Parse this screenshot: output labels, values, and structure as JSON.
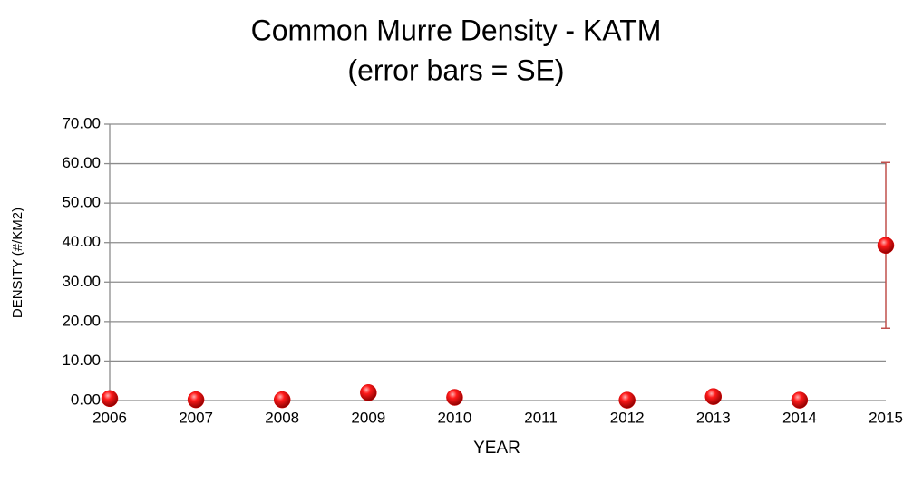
{
  "chart_data": {
    "type": "scatter",
    "title": "Common Murre Density - KATM",
    "subtitle": "(error bars = SE)",
    "x_label": "YEAR",
    "y_label": "DENSITY (#/KM2)",
    "x": [
      2006,
      2007,
      2008,
      2009,
      2010,
      2011,
      2012,
      2013,
      2014,
      2015
    ],
    "series": [
      {
        "name": "Common Murre",
        "color": "#e00000",
        "values": [
          0.5,
          0.2,
          0.2,
          2.0,
          0.8,
          null,
          0.1,
          1.0,
          0.1,
          39.3
        ],
        "errors": [
          null,
          null,
          null,
          null,
          null,
          null,
          null,
          null,
          null,
          21.0
        ],
        "error_color": "#c0504d"
      }
    ],
    "xlim": [
      2006,
      2015
    ],
    "xticks": [
      2006,
      2007,
      2008,
      2009,
      2010,
      2011,
      2012,
      2013,
      2014,
      2015
    ],
    "ylim": [
      0,
      70
    ],
    "yticks": [
      {
        "value": 0,
        "label": "0.00"
      },
      {
        "value": 10,
        "label": "10.00"
      },
      {
        "value": 20,
        "label": "20.00"
      },
      {
        "value": 30,
        "label": "30.00"
      },
      {
        "value": 40,
        "label": "40.00"
      },
      {
        "value": 50,
        "label": "50.00"
      },
      {
        "value": 60,
        "label": "60.00"
      },
      {
        "value": 70,
        "label": "70.00"
      }
    ],
    "grid": true
  }
}
